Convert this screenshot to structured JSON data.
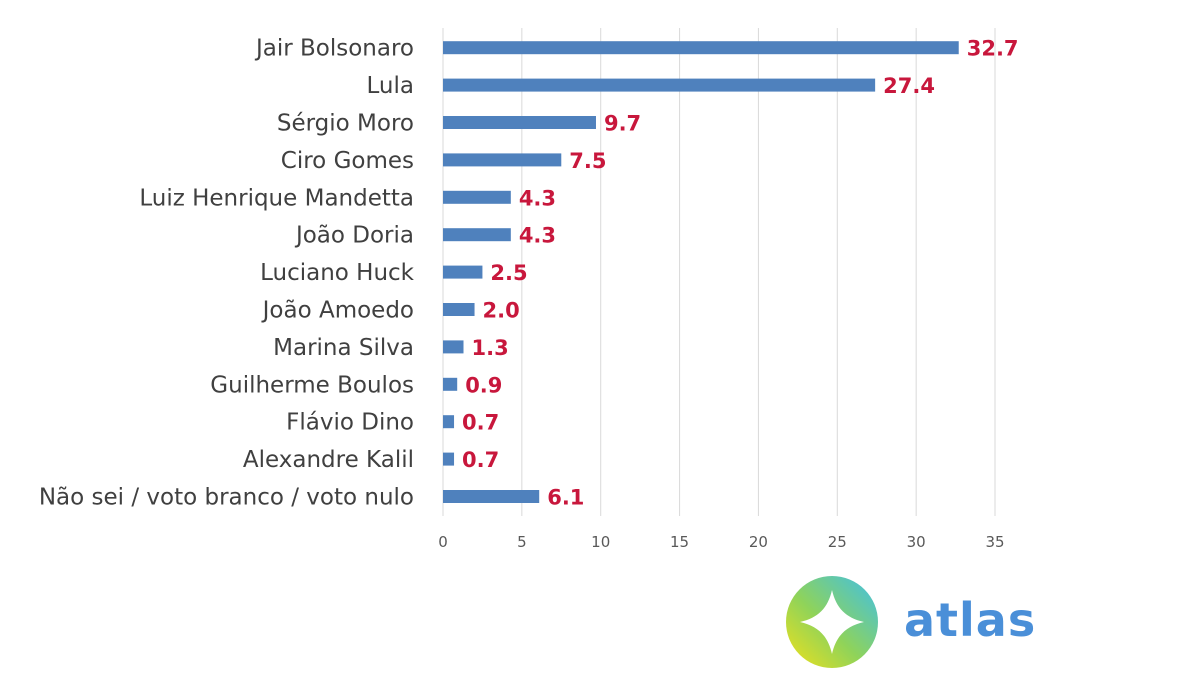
{
  "chart_data": {
    "type": "bar",
    "orientation": "horizontal",
    "categories": [
      "Jair Bolsonaro",
      "Lula",
      "Sérgio Moro",
      "Ciro Gomes",
      "Luiz Henrique Mandetta",
      "João Doria",
      "Luciano Huck",
      "João Amoedo",
      "Marina Silva",
      "Guilherme Boulos",
      "Flávio Dino",
      "Alexandre Kalil",
      "Não sei / voto branco / voto nulo"
    ],
    "values": [
      32.7,
      27.4,
      9.7,
      7.5,
      4.3,
      4.3,
      2.5,
      2.0,
      1.3,
      0.9,
      0.7,
      0.7,
      6.1
    ],
    "value_labels": [
      "32.7",
      "27.4",
      "9.7",
      "7.5",
      "4.3",
      "4.3",
      "2.5",
      "2.0",
      "1.3",
      "0.9",
      "0.7",
      "0.7",
      "6.1"
    ],
    "xlim": [
      0,
      35
    ],
    "xticks": [
      "0",
      "5",
      "10",
      "15",
      "20",
      "25",
      "30",
      "35"
    ],
    "title": "",
    "xlabel": "",
    "ylabel": "",
    "grid": true,
    "bar_color": "#4f81bd",
    "label_color": "#c8173c"
  },
  "branding": {
    "logo_name": "atlas-compass-logo",
    "text": "atlas",
    "color": "#4a8fd8"
  }
}
